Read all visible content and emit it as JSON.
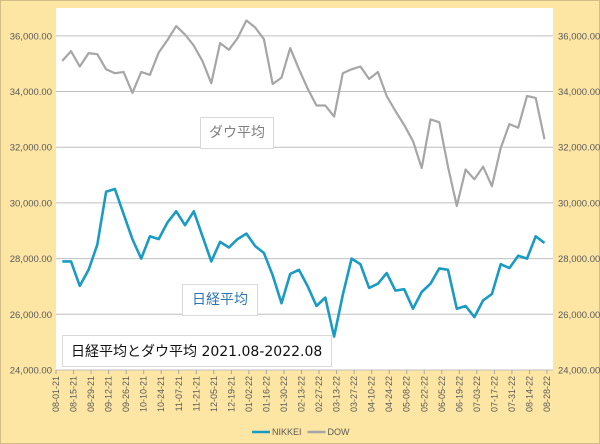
{
  "chart_data": {
    "type": "line",
    "title": "日経平均とダウ平均 2021.08-2022.08",
    "annotations": {
      "dow": "ダウ平均",
      "nikkei": "日経平均"
    },
    "xlabel": "",
    "ylabel": "",
    "ylim": [
      24000,
      37000
    ],
    "y_ticks": [
      "24,000.00",
      "26,000.00",
      "28,000.00",
      "30,000.00",
      "32,000.00",
      "34,000.00",
      "36,000.00"
    ],
    "y_tick_values": [
      24000,
      26000,
      28000,
      30000,
      32000,
      34000,
      36000
    ],
    "secondary_y_ticks": [
      "24,000.00",
      "26,000.00",
      "28,000.00",
      "30,000.00",
      "32,000.00",
      "34,000.00",
      "36,000.00"
    ],
    "x_tick_labels": [
      "08-01-21",
      "08-15-21",
      "08-29-21",
      "09-12-21",
      "09-26-21",
      "10-10-21",
      "10-24-21",
      "11-07-21",
      "11-21-21",
      "12-05-21",
      "12-19-21",
      "01-02-22",
      "01-16-22",
      "01-30-22",
      "02-13-22",
      "02-27-22",
      "03-13-22",
      "03-27-22",
      "04-10-22",
      "04-24-22",
      "05-08-22",
      "05-22-22",
      "06-05-22",
      "06-19-22",
      "07-03-22",
      "07-17-22",
      "07-31-22",
      "08-14-22",
      "08-28-22"
    ],
    "grid": true,
    "legend_position": "bottom",
    "x": [
      "2021-08-06",
      "2021-08-13",
      "2021-08-20",
      "2021-08-27",
      "2021-09-03",
      "2021-09-10",
      "2021-09-17",
      "2021-09-24",
      "2021-10-01",
      "2021-10-08",
      "2021-10-15",
      "2021-10-22",
      "2021-10-29",
      "2021-11-05",
      "2021-11-12",
      "2021-11-19",
      "2021-11-26",
      "2021-12-03",
      "2021-12-10",
      "2021-12-17",
      "2021-12-24",
      "2021-12-31",
      "2022-01-07",
      "2022-01-14",
      "2022-01-21",
      "2022-01-28",
      "2022-02-04",
      "2022-02-11",
      "2022-02-18",
      "2022-02-25",
      "2022-03-04",
      "2022-03-11",
      "2022-03-18",
      "2022-03-25",
      "2022-04-01",
      "2022-04-08",
      "2022-04-15",
      "2022-04-22",
      "2022-04-29",
      "2022-05-06",
      "2022-05-13",
      "2022-05-20",
      "2022-05-27",
      "2022-06-03",
      "2022-06-10",
      "2022-06-17",
      "2022-06-24",
      "2022-07-01",
      "2022-07-08",
      "2022-07-15",
      "2022-07-22",
      "2022-07-29",
      "2022-08-05",
      "2022-08-12",
      "2022-08-19",
      "2022-08-26"
    ],
    "series": [
      {
        "name": "NIKKEI",
        "color": "#1a9bc4",
        "values": [
          27900,
          27900,
          27020,
          27600,
          28500,
          30400,
          30500,
          29600,
          28700,
          28000,
          28800,
          28700,
          29300,
          29700,
          29200,
          29700,
          28800,
          27900,
          28600,
          28400,
          28700,
          28900,
          28450,
          28200,
          27400,
          26400,
          27450,
          27600,
          27000,
          26300,
          26600,
          25200,
          26700,
          28000,
          27800,
          26950,
          27100,
          27480,
          26850,
          26900,
          26200,
          26800,
          27100,
          27650,
          27600,
          26200,
          26300,
          25900,
          26500,
          26730,
          27800,
          27660,
          28100,
          28000,
          28800,
          28560
        ]
      },
      {
        "name": "DOW",
        "color": "#a6a6a6",
        "values": [
          35100,
          35450,
          34900,
          35380,
          35340,
          34800,
          34660,
          34700,
          33950,
          34700,
          34600,
          35400,
          35850,
          36350,
          36050,
          35650,
          35090,
          34300,
          35740,
          35500,
          35920,
          36550,
          36300,
          35880,
          34270,
          34500,
          35560,
          34800,
          34090,
          33500,
          33500,
          33100,
          34660,
          34800,
          34900,
          34450,
          34700,
          33840,
          33300,
          32800,
          32220,
          31250,
          33000,
          32900,
          31300,
          29890,
          31200,
          30850,
          31300,
          30600,
          31970,
          32830,
          32700,
          33840,
          33770,
          32290
        ]
      }
    ]
  },
  "colors": {
    "background": "#fde6a4",
    "plot": "#ffffff",
    "grid": "#bfbfbf"
  }
}
